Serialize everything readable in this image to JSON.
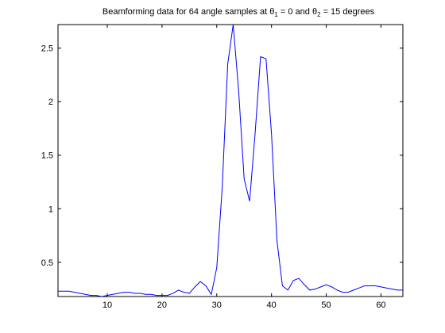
{
  "chart_data": {
    "type": "line",
    "title": {
      "prefix": "Beamforming data for 64 angle samples at ",
      "theta_symbol": "θ",
      "sub1": "1",
      "mid": " = 0 and ",
      "sub2": "2",
      "suffix": " = 15 degrees"
    },
    "xlabel": "",
    "ylabel": "",
    "xlim": [
      1,
      64
    ],
    "ylim": [
      0.18,
      2.72
    ],
    "xticks": [
      10,
      20,
      30,
      40,
      50,
      60
    ],
    "yticks": [
      0.5,
      1,
      1.5,
      2,
      2.5
    ],
    "ytick_labels": [
      "0.5",
      "1",
      "1.5",
      "2",
      "2.5"
    ],
    "grid": false,
    "line_color": "#0000ff",
    "series": [
      {
        "name": "beamforming",
        "x": [
          1,
          2,
          3,
          4,
          5,
          6,
          7,
          8,
          9,
          10,
          11,
          12,
          13,
          14,
          15,
          16,
          17,
          18,
          19,
          20,
          21,
          22,
          23,
          24,
          25,
          26,
          27,
          28,
          29,
          30,
          31,
          32,
          33,
          34,
          35,
          36,
          37,
          38,
          39,
          40,
          41,
          42,
          43,
          44,
          45,
          46,
          47,
          48,
          49,
          50,
          51,
          52,
          53,
          54,
          55,
          56,
          57,
          58,
          59,
          60,
          61,
          62,
          63,
          64
        ],
        "values": [
          0.23,
          0.23,
          0.23,
          0.22,
          0.21,
          0.2,
          0.19,
          0.19,
          0.18,
          0.19,
          0.2,
          0.21,
          0.22,
          0.22,
          0.21,
          0.21,
          0.2,
          0.2,
          0.19,
          0.19,
          0.19,
          0.21,
          0.24,
          0.22,
          0.21,
          0.27,
          0.32,
          0.28,
          0.2,
          0.45,
          1.2,
          2.35,
          2.72,
          2.1,
          1.28,
          1.07,
          1.7,
          2.42,
          2.4,
          1.7,
          0.7,
          0.28,
          0.24,
          0.33,
          0.35,
          0.29,
          0.24,
          0.25,
          0.27,
          0.29,
          0.27,
          0.24,
          0.22,
          0.22,
          0.24,
          0.26,
          0.28,
          0.28,
          0.28,
          0.27,
          0.26,
          0.25,
          0.24,
          0.24
        ]
      }
    ]
  }
}
